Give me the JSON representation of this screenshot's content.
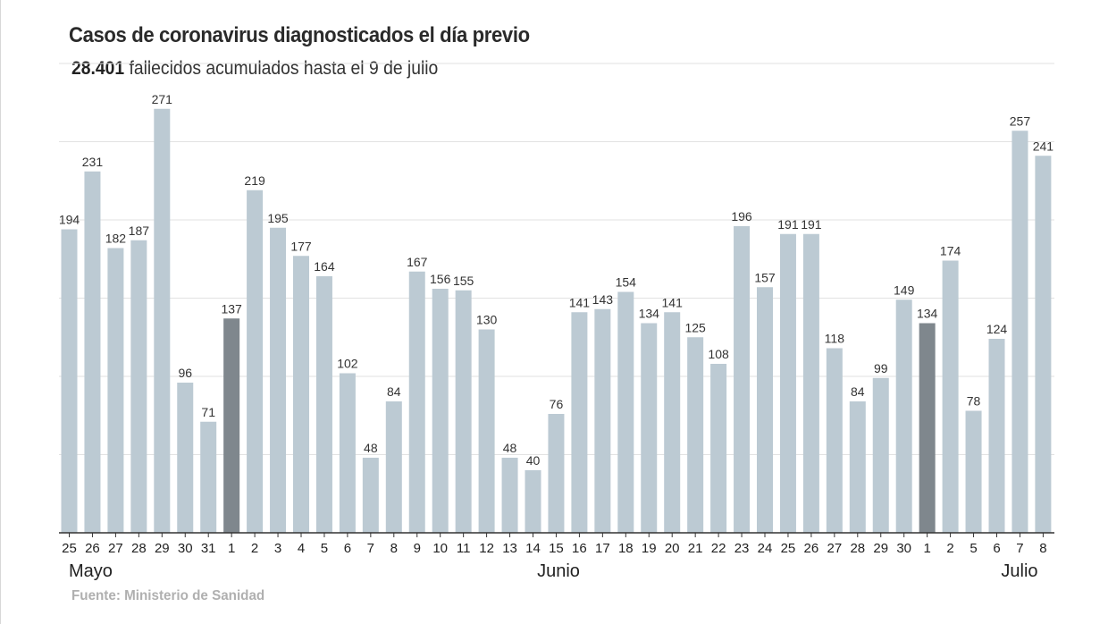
{
  "header": {
    "title": "Casos de coronavirus diagnosticados el día previo",
    "subtitle_bold": "28.401",
    "subtitle_rest": "fallecidos acumulados hasta el 9 de julio"
  },
  "footer": {
    "source": "Fuente: Ministerio de Sanidad"
  },
  "colors": {
    "bar": "#bccad3",
    "bar_highlight": "#7f878d",
    "grid": "#e2e2e2",
    "axis": "#333333"
  },
  "chart_data": {
    "type": "bar",
    "title": "Casos de coronavirus diagnosticados el día previo",
    "categories": [
      "25",
      "26",
      "27",
      "28",
      "29",
      "30",
      "31",
      "1",
      "2",
      "3",
      "4",
      "5",
      "6",
      "7",
      "8",
      "9",
      "10",
      "11",
      "12",
      "13",
      "14",
      "15",
      "16",
      "17",
      "18",
      "19",
      "20",
      "21",
      "22",
      "23",
      "24",
      "25",
      "26",
      "27",
      "28",
      "29",
      "30",
      "1",
      "2",
      "5",
      "6",
      "7",
      "8"
    ],
    "values": [
      194,
      231,
      182,
      187,
      271,
      96,
      71,
      137,
      219,
      195,
      177,
      164,
      102,
      48,
      84,
      167,
      156,
      155,
      130,
      48,
      40,
      76,
      141,
      143,
      154,
      134,
      141,
      125,
      108,
      196,
      157,
      191,
      191,
      118,
      84,
      99,
      149,
      134,
      174,
      78,
      124,
      257,
      241
    ],
    "highlighted": [
      false,
      false,
      false,
      false,
      false,
      false,
      false,
      true,
      false,
      false,
      false,
      false,
      false,
      false,
      false,
      false,
      false,
      false,
      false,
      false,
      false,
      false,
      false,
      false,
      false,
      false,
      false,
      false,
      false,
      false,
      false,
      false,
      false,
      false,
      false,
      false,
      false,
      true,
      false,
      false,
      false,
      false,
      false
    ],
    "months": [
      {
        "label": "Mayo",
        "start_index": 0
      },
      {
        "label": "Junio",
        "start_index": 7
      },
      {
        "label": "Julio",
        "start_index": 37
      }
    ],
    "ylim": [
      0,
      300
    ],
    "ygrid": [
      50,
      100,
      150,
      200,
      250,
      300
    ],
    "xlabel": "",
    "ylabel": "",
    "grid": true
  }
}
